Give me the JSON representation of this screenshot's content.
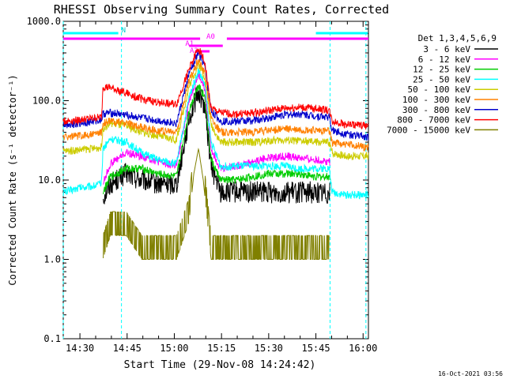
{
  "chart_data": {
    "type": "line",
    "title": "RHESSI Observing Summary Count Rates, Corrected",
    "xlabel": "Start Time (29-Nov-08 14:24:42)",
    "ylabel": "Corrected Count Rate (s⁻¹ detector⁻¹)",
    "x_unit": "minutes after 14:24:42",
    "xlim": [
      0,
      97
    ],
    "ylim": [
      0.1,
      1000
    ],
    "yscale": "log",
    "x_ticks": [
      {
        "label": "14:30",
        "value": 5.3
      },
      {
        "label": "14:45",
        "value": 20.3
      },
      {
        "label": "15:00",
        "value": 35.3
      },
      {
        "label": "15:15",
        "value": 50.3
      },
      {
        "label": "15:30",
        "value": 65.3
      },
      {
        "label": "15:45",
        "value": 80.3
      },
      {
        "label": "16:00",
        "value": 95.3
      }
    ],
    "y_ticks": [
      {
        "label": "0.1",
        "value": 0.1
      },
      {
        "label": "1.0",
        "value": 1
      },
      {
        "label": "10.0",
        "value": 10
      },
      {
        "label": "100.0",
        "value": 100
      },
      {
        "label": "1000.0",
        "value": 1000
      }
    ],
    "legend": {
      "title": "Det 1,3,4,5,6,9",
      "placement": "right"
    },
    "series": [
      {
        "name": "3 - 6 keV",
        "color": "#000000",
        "x": [
          0,
          12.2,
          12.6,
          15,
          20,
          25,
          30,
          36,
          40,
          43,
          45,
          47,
          50,
          55,
          60,
          70,
          80,
          84.8,
          85.2,
          97
        ],
        "y": [
          null,
          null,
          6,
          9,
          12,
          10,
          9,
          9,
          60,
          130,
          85,
          15,
          7,
          7,
          7,
          7,
          7,
          7,
          null,
          null
        ]
      },
      {
        "name": "6 - 12 keV",
        "color": "#ff00ff",
        "x": [
          0,
          12.2,
          12.6,
          15,
          20,
          25,
          30,
          36,
          40,
          43,
          45,
          47,
          50,
          55,
          60,
          65,
          70,
          75,
          80,
          84.8,
          85.2,
          97
        ],
        "y": [
          null,
          null,
          9,
          16,
          22,
          20,
          17,
          15,
          100,
          215,
          140,
          25,
          14,
          15,
          17,
          19,
          20,
          19,
          18,
          17,
          null,
          null
        ]
      },
      {
        "name": "12 - 25 keV",
        "color": "#00cc00",
        "x": [
          0,
          12.2,
          12.6,
          15,
          20,
          25,
          30,
          36,
          40,
          43,
          45,
          47,
          50,
          55,
          60,
          65,
          70,
          75,
          80,
          84.8,
          85.2,
          97
        ],
        "y": [
          null,
          null,
          7,
          11,
          14,
          14,
          12,
          11,
          75,
          160,
          110,
          18,
          10,
          10,
          11,
          12,
          12,
          12,
          11,
          11,
          null,
          null
        ]
      },
      {
        "name": "25 - 50 keV",
        "color": "#00ffff",
        "x": [
          0,
          5,
          10,
          12.2,
          12.6,
          15,
          20,
          25,
          30,
          36,
          40,
          43,
          45,
          47,
          50,
          55,
          60,
          65,
          70,
          75,
          80,
          84.5,
          85.5,
          90,
          97
        ],
        "y": [
          7,
          8,
          8.5,
          9,
          25,
          33,
          30,
          22,
          18,
          16,
          110,
          240,
          160,
          30,
          15,
          15,
          15,
          15,
          15,
          14,
          14,
          14,
          7,
          6.5,
          6.5
        ]
      },
      {
        "name": "50 - 100 keV",
        "color": "#cccc00",
        "x": [
          0,
          5,
          10,
          12.2,
          12.6,
          15,
          20,
          25,
          30,
          36,
          40,
          43,
          45,
          47,
          50,
          55,
          60,
          65,
          70,
          75,
          80,
          84.5,
          85.5,
          90,
          97
        ],
        "y": [
          23,
          24,
          25,
          26,
          45,
          52,
          48,
          40,
          36,
          32,
          150,
          290,
          200,
          50,
          30,
          30,
          30,
          31,
          32,
          31,
          30,
          30,
          22,
          20,
          20
        ]
      },
      {
        "name": "100 - 300 keV",
        "color": "#ff8000",
        "x": [
          0,
          5,
          10,
          12.2,
          12.6,
          15,
          20,
          25,
          30,
          36,
          40,
          43,
          45,
          47,
          50,
          55,
          60,
          65,
          70,
          75,
          80,
          84.5,
          85.5,
          90,
          97
        ],
        "y": [
          35,
          36,
          38,
          40,
          52,
          55,
          52,
          46,
          42,
          40,
          180,
          330,
          220,
          60,
          40,
          40,
          40,
          42,
          44,
          43,
          42,
          41,
          30,
          28,
          26
        ]
      },
      {
        "name": "300 - 800 keV",
        "color": "#0000cc",
        "x": [
          0,
          5,
          10,
          12.2,
          12.6,
          15,
          20,
          25,
          30,
          36,
          40,
          43,
          45,
          47,
          50,
          55,
          60,
          65,
          70,
          75,
          80,
          84.5,
          85.5,
          90,
          97
        ],
        "y": [
          50,
          52,
          55,
          58,
          68,
          70,
          66,
          60,
          56,
          52,
          220,
          400,
          270,
          75,
          55,
          55,
          56,
          60,
          66,
          68,
          64,
          62,
          42,
          38,
          35
        ]
      },
      {
        "name": "800 - 7000 keV",
        "color": "#ff0000",
        "x": [
          0,
          5,
          10,
          12.2,
          12.6,
          15,
          20,
          25,
          30,
          36,
          40,
          43,
          45,
          47,
          50,
          55,
          60,
          65,
          70,
          75,
          80,
          84.5,
          85.5,
          90,
          97
        ],
        "y": [
          55,
          57,
          60,
          62,
          150,
          145,
          125,
          105,
          95,
          90,
          250,
          460,
          300,
          80,
          70,
          68,
          70,
          74,
          80,
          82,
          80,
          76,
          55,
          50,
          48
        ]
      },
      {
        "name": "7000 - 15000 keV",
        "color": "#808000",
        "x": [
          0,
          12.2,
          12.6,
          15,
          20,
          25,
          30,
          36,
          40,
          41.5,
          43,
          44.5,
          47,
          50,
          55,
          60,
          70,
          80,
          84.5,
          85.5,
          97
        ],
        "y": [
          null,
          null,
          1,
          2,
          2,
          1,
          1,
          1,
          3,
          12,
          25,
          10,
          1,
          1,
          1,
          1,
          1,
          1,
          1,
          null,
          null
        ]
      }
    ],
    "annotations": [
      {
        "label": "N",
        "x": 18.5
      },
      {
        "label": "A0",
        "x": 45.5
      },
      {
        "label": "A1",
        "x": 38.8
      },
      {
        "label": "A3",
        "x": 40.2
      }
    ],
    "footer_date": "16-Oct-2021 03:56"
  }
}
